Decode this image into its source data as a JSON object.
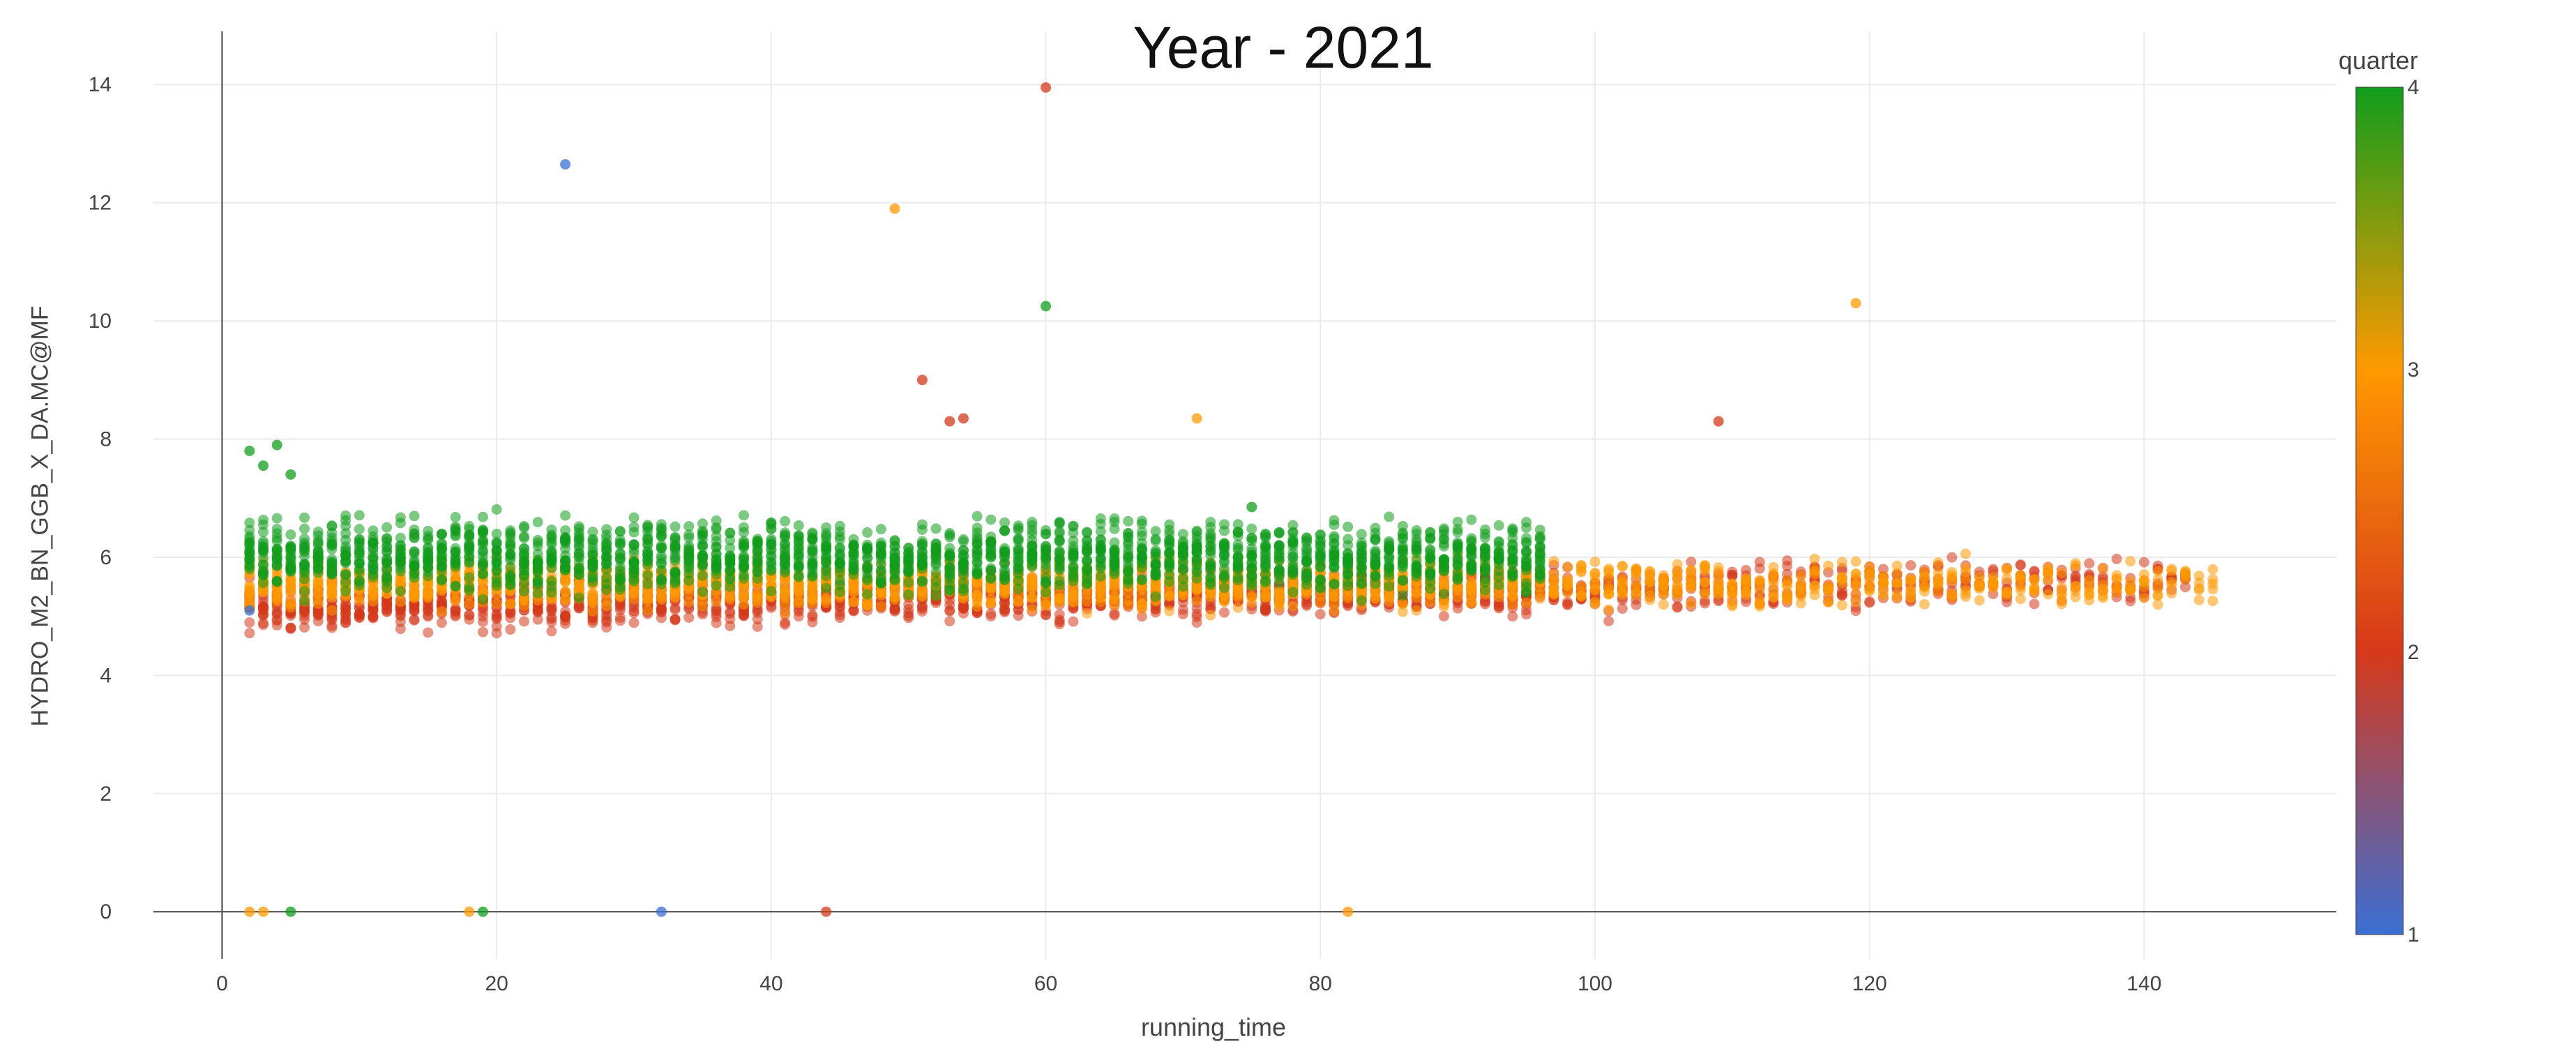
{
  "page_title": "Year - 2021",
  "colorbar_title": "quarter",
  "colors": {
    "q1": "#3b6fd4",
    "q2": "#d6391a",
    "q3": "#ff9900",
    "q4": "#119d1c",
    "grid": "#ebebeb",
    "axis": "#444444"
  },
  "chart_data": {
    "type": "scatter",
    "title": "Year - 2021",
    "xlabel": "running_time",
    "ylabel": "HYDRO_M2_BN_GGB_X_DA.MC@MF",
    "xlim": [
      -5,
      154
    ],
    "ylim": [
      -0.8,
      14.9
    ],
    "x_ticks": [
      0,
      20,
      40,
      60,
      80,
      100,
      120,
      140
    ],
    "y_ticks": [
      0,
      2,
      4,
      6,
      8,
      10,
      12,
      14
    ],
    "grid": true,
    "color_scale": {
      "title": "quarter",
      "range": [
        1,
        4
      ],
      "ticks": [
        1,
        2,
        3,
        4
      ],
      "stops": [
        "#3b6fd4",
        "#d6391a",
        "#ff9900",
        "#119d1c"
      ]
    },
    "bands": [
      {
        "quarter": 4,
        "x_range": [
          2,
          96
        ],
        "y_center_start": 6.05,
        "y_center_end": 6.0,
        "y_spread": 0.45
      },
      {
        "quarter": 3,
        "x_range": [
          2,
          145
        ],
        "y_center_start": 5.55,
        "y_center_end": 5.55,
        "y_spread": 0.3
      },
      {
        "quarter": 2,
        "x_range": [
          2,
          143
        ],
        "y_center_start": 5.15,
        "y_center_end": 5.6,
        "y_spread": 0.3
      }
    ],
    "outliers": [
      {
        "x": 25,
        "y": 12.65,
        "quarter": 1
      },
      {
        "x": 60,
        "y": 13.95,
        "quarter": 2
      },
      {
        "x": 49,
        "y": 11.9,
        "quarter": 3
      },
      {
        "x": 60,
        "y": 10.25,
        "quarter": 4
      },
      {
        "x": 119,
        "y": 10.3,
        "quarter": 3
      },
      {
        "x": 51,
        "y": 9.0,
        "quarter": 2
      },
      {
        "x": 53,
        "y": 8.3,
        "quarter": 2
      },
      {
        "x": 54,
        "y": 8.35,
        "quarter": 2
      },
      {
        "x": 71,
        "y": 8.35,
        "quarter": 3
      },
      {
        "x": 109,
        "y": 8.3,
        "quarter": 2
      },
      {
        "x": 2,
        "y": 7.8,
        "quarter": 4
      },
      {
        "x": 3,
        "y": 7.55,
        "quarter": 4
      },
      {
        "x": 4,
        "y": 7.9,
        "quarter": 4
      },
      {
        "x": 5,
        "y": 7.4,
        "quarter": 4
      },
      {
        "x": 75,
        "y": 6.85,
        "quarter": 4
      },
      {
        "x": 2,
        "y": 5.1,
        "quarter": 1
      },
      {
        "x": 2,
        "y": 0,
        "quarter": 3
      },
      {
        "x": 3,
        "y": 0,
        "quarter": 3
      },
      {
        "x": 5,
        "y": 0,
        "quarter": 4
      },
      {
        "x": 18,
        "y": 0,
        "quarter": 3
      },
      {
        "x": 19,
        "y": 0,
        "quarter": 4
      },
      {
        "x": 32,
        "y": 0,
        "quarter": 1
      },
      {
        "x": 44,
        "y": 0,
        "quarter": 2
      },
      {
        "x": 82,
        "y": 0,
        "quarter": 3
      }
    ]
  }
}
